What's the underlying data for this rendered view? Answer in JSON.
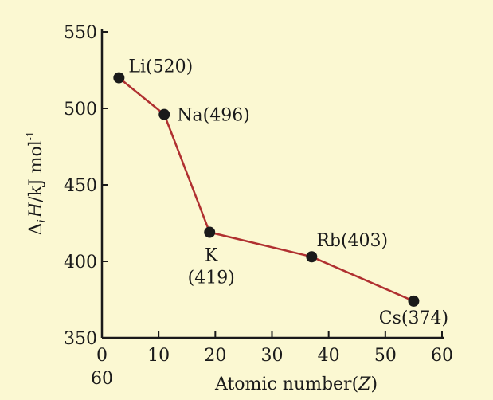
{
  "chart_data": {
    "type": "line",
    "xlabel_prefix": "Atomic number(",
    "xlabel_var": "Z",
    "xlabel_suffix": ")",
    "ylabel_delta": "Δ",
    "ylabel_sub": "i",
    "ylabel_var": "H",
    "ylabel_unit": "/kJ mol",
    "ylabel_sup": "-1",
    "xlim": [
      0,
      60
    ],
    "ylim": [
      350,
      550
    ],
    "x_ticks": [
      0,
      10,
      20,
      30,
      40,
      50,
      60
    ],
    "x_extra_label": "60",
    "y_ticks": [
      350,
      400,
      450,
      500,
      550
    ],
    "grid": false,
    "line_color": "#b03030",
    "marker_color": "#1a1a1a",
    "series": [
      {
        "points": [
          {
            "x": 3,
            "y": 520,
            "label": "Li(520)"
          },
          {
            "x": 11,
            "y": 496,
            "label": "Na(496)"
          },
          {
            "x": 19,
            "y": 419,
            "label": "K",
            "label2": "(419)"
          },
          {
            "x": 37,
            "y": 403,
            "label": "Rb(403)"
          },
          {
            "x": 55,
            "y": 374,
            "label": "Cs(374)"
          }
        ]
      }
    ]
  }
}
